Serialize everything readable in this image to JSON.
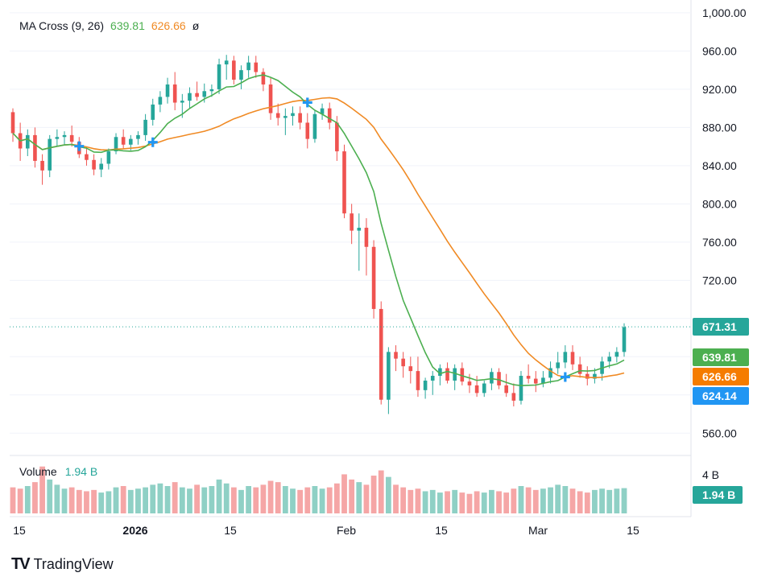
{
  "legend": {
    "indicator": "MA Cross (9, 26)",
    "fast_value": "639.81",
    "slow_value": "626.66",
    "eye": "ø"
  },
  "volume_legend": {
    "label": "Volume",
    "value": "1.94 B"
  },
  "brand": {
    "mark": "TV",
    "name": "TradingView"
  },
  "colors": {
    "up": "#26a69a",
    "down": "#ef5350",
    "fast_ma": "#4caf50",
    "slow_ma": "#f08a24",
    "cross": "#2196f3",
    "vol_up": "#8fd0c5",
    "vol_down": "#f5a6a6",
    "grid": "#f0f3fa"
  },
  "chart_data": {
    "type": "candlestick",
    "price_axis": {
      "ticks": [
        560,
        600,
        640,
        680,
        720,
        760,
        800,
        840,
        880,
        920,
        960,
        1000
      ],
      "tick_labels": [
        "560.00",
        "",
        "",
        "",
        "720.00",
        "760.00",
        "800.00",
        "840.00",
        "880.00",
        "920.00",
        "960.00",
        "1,000.00"
      ],
      "range": [
        540,
        1005
      ]
    },
    "time_axis": {
      "labels": [
        "15",
        "2026",
        "15",
        "Feb",
        "15",
        "Mar",
        "15"
      ]
    },
    "volume_axis": {
      "tick_label": "4 B"
    },
    "price_labels": [
      {
        "value": 671.31,
        "text": "671.31",
        "color": "#26a69a"
      },
      {
        "value": 639.81,
        "text": "639.81",
        "color": "#4caf50"
      },
      {
        "value": 626.66,
        "text": "626.66",
        "color": "#f57c00"
      },
      {
        "value": 624.14,
        "text": "624.14",
        "color": "#2196f3"
      }
    ],
    "volume_label": {
      "text": "1.94 B",
      "color": "#26a69a"
    },
    "ohlc": [
      [
        896,
        900,
        865,
        874
      ],
      [
        874,
        885,
        845,
        858
      ],
      [
        858,
        878,
        850,
        872
      ],
      [
        872,
        880,
        838,
        845
      ],
      [
        845,
        852,
        820,
        835
      ],
      [
        835,
        872,
        828,
        868
      ],
      [
        868,
        878,
        860,
        870
      ],
      [
        870,
        876,
        862,
        872
      ],
      [
        872,
        882,
        860,
        865
      ],
      [
        865,
        870,
        848,
        852
      ],
      [
        852,
        860,
        840,
        846
      ],
      [
        846,
        852,
        830,
        836
      ],
      [
        836,
        848,
        828,
        842
      ],
      [
        842,
        858,
        836,
        855
      ],
      [
        855,
        874,
        852,
        870
      ],
      [
        870,
        878,
        858,
        862
      ],
      [
        862,
        872,
        856,
        868
      ],
      [
        868,
        876,
        862,
        872
      ],
      [
        872,
        894,
        866,
        888
      ],
      [
        888,
        910,
        882,
        904
      ],
      [
        904,
        918,
        896,
        912
      ],
      [
        912,
        932,
        905,
        925
      ],
      [
        925,
        938,
        898,
        906
      ],
      [
        906,
        915,
        890,
        908
      ],
      [
        908,
        922,
        900,
        916
      ],
      [
        916,
        928,
        908,
        912
      ],
      [
        912,
        926,
        906,
        918
      ],
      [
        918,
        925,
        912,
        920
      ],
      [
        920,
        952,
        915,
        946
      ],
      [
        946,
        956,
        930,
        950
      ],
      [
        950,
        955,
        925,
        930
      ],
      [
        930,
        945,
        920,
        940
      ],
      [
        940,
        955,
        932,
        948
      ],
      [
        948,
        955,
        932,
        938
      ],
      [
        938,
        942,
        918,
        925
      ],
      [
        925,
        932,
        888,
        895
      ],
      [
        895,
        905,
        882,
        890
      ],
      [
        890,
        900,
        872,
        892
      ],
      [
        892,
        902,
        882,
        895
      ],
      [
        895,
        902,
        878,
        885
      ],
      [
        885,
        895,
        858,
        868
      ],
      [
        868,
        898,
        864,
        894
      ],
      [
        894,
        905,
        888,
        900
      ],
      [
        900,
        906,
        878,
        885
      ],
      [
        885,
        892,
        845,
        855
      ],
      [
        855,
        862,
        785,
        790
      ],
      [
        790,
        800,
        758,
        772
      ],
      [
        772,
        790,
        730,
        775
      ],
      [
        775,
        785,
        725,
        755
      ],
      [
        755,
        762,
        680,
        690
      ],
      [
        690,
        698,
        590,
        595
      ],
      [
        595,
        650,
        580,
        645
      ],
      [
        645,
        652,
        625,
        638
      ],
      [
        638,
        645,
        618,
        630
      ],
      [
        630,
        640,
        612,
        625
      ],
      [
        625,
        640,
        598,
        605
      ],
      [
        605,
        618,
        596,
        615
      ],
      [
        615,
        625,
        600,
        620
      ],
      [
        620,
        632,
        610,
        628
      ],
      [
        628,
        634,
        612,
        615
      ],
      [
        615,
        632,
        605,
        628
      ],
      [
        628,
        634,
        610,
        614
      ],
      [
        614,
        622,
        602,
        610
      ],
      [
        610,
        620,
        598,
        602
      ],
      [
        602,
        615,
        598,
        612
      ],
      [
        612,
        628,
        605,
        624
      ],
      [
        624,
        628,
        606,
        610
      ],
      [
        610,
        622,
        598,
        602
      ],
      [
        602,
        612,
        588,
        594
      ],
      [
        594,
        625,
        590,
        620
      ],
      [
        620,
        632,
        612,
        617
      ],
      [
        617,
        625,
        603,
        612
      ],
      [
        612,
        625,
        608,
        618
      ],
      [
        618,
        635,
        612,
        628
      ],
      [
        628,
        645,
        622,
        634
      ],
      [
        634,
        652,
        628,
        645
      ],
      [
        645,
        652,
        626,
        632
      ],
      [
        632,
        640,
        618,
        622
      ],
      [
        622,
        630,
        610,
        617
      ],
      [
        617,
        628,
        612,
        622
      ],
      [
        622,
        640,
        615,
        635
      ],
      [
        635,
        645,
        628,
        640
      ],
      [
        640,
        650,
        634,
        645
      ],
      [
        645,
        675,
        640,
        671
      ]
    ],
    "ma_fast_period": 9,
    "ma_slow_period": 26,
    "volume": [
      2.0,
      1.9,
      2.1,
      2.4,
      3.6,
      2.6,
      2.2,
      1.9,
      2.0,
      1.8,
      1.7,
      1.8,
      1.6,
      1.7,
      2.0,
      2.1,
      1.8,
      1.9,
      2.0,
      2.2,
      2.3,
      2.1,
      2.4,
      2.0,
      1.9,
      2.2,
      2.0,
      2.1,
      2.6,
      2.3,
      2.0,
      1.8,
      2.1,
      2.0,
      2.2,
      2.5,
      2.4,
      2.1,
      1.9,
      1.8,
      2.0,
      2.1,
      1.9,
      2.0,
      2.3,
      3.0,
      2.6,
      2.4,
      2.2,
      2.9,
      3.3,
      2.8,
      2.2,
      2.0,
      1.8,
      1.9,
      1.7,
      1.8,
      1.6,
      1.7,
      1.8,
      1.6,
      1.5,
      1.7,
      1.6,
      1.8,
      1.7,
      1.6,
      1.9,
      2.1,
      2.0,
      1.8,
      1.9,
      2.0,
      2.2,
      2.1,
      1.9,
      1.7,
      1.6,
      1.8,
      1.9,
      1.8,
      1.9,
      1.94
    ]
  }
}
